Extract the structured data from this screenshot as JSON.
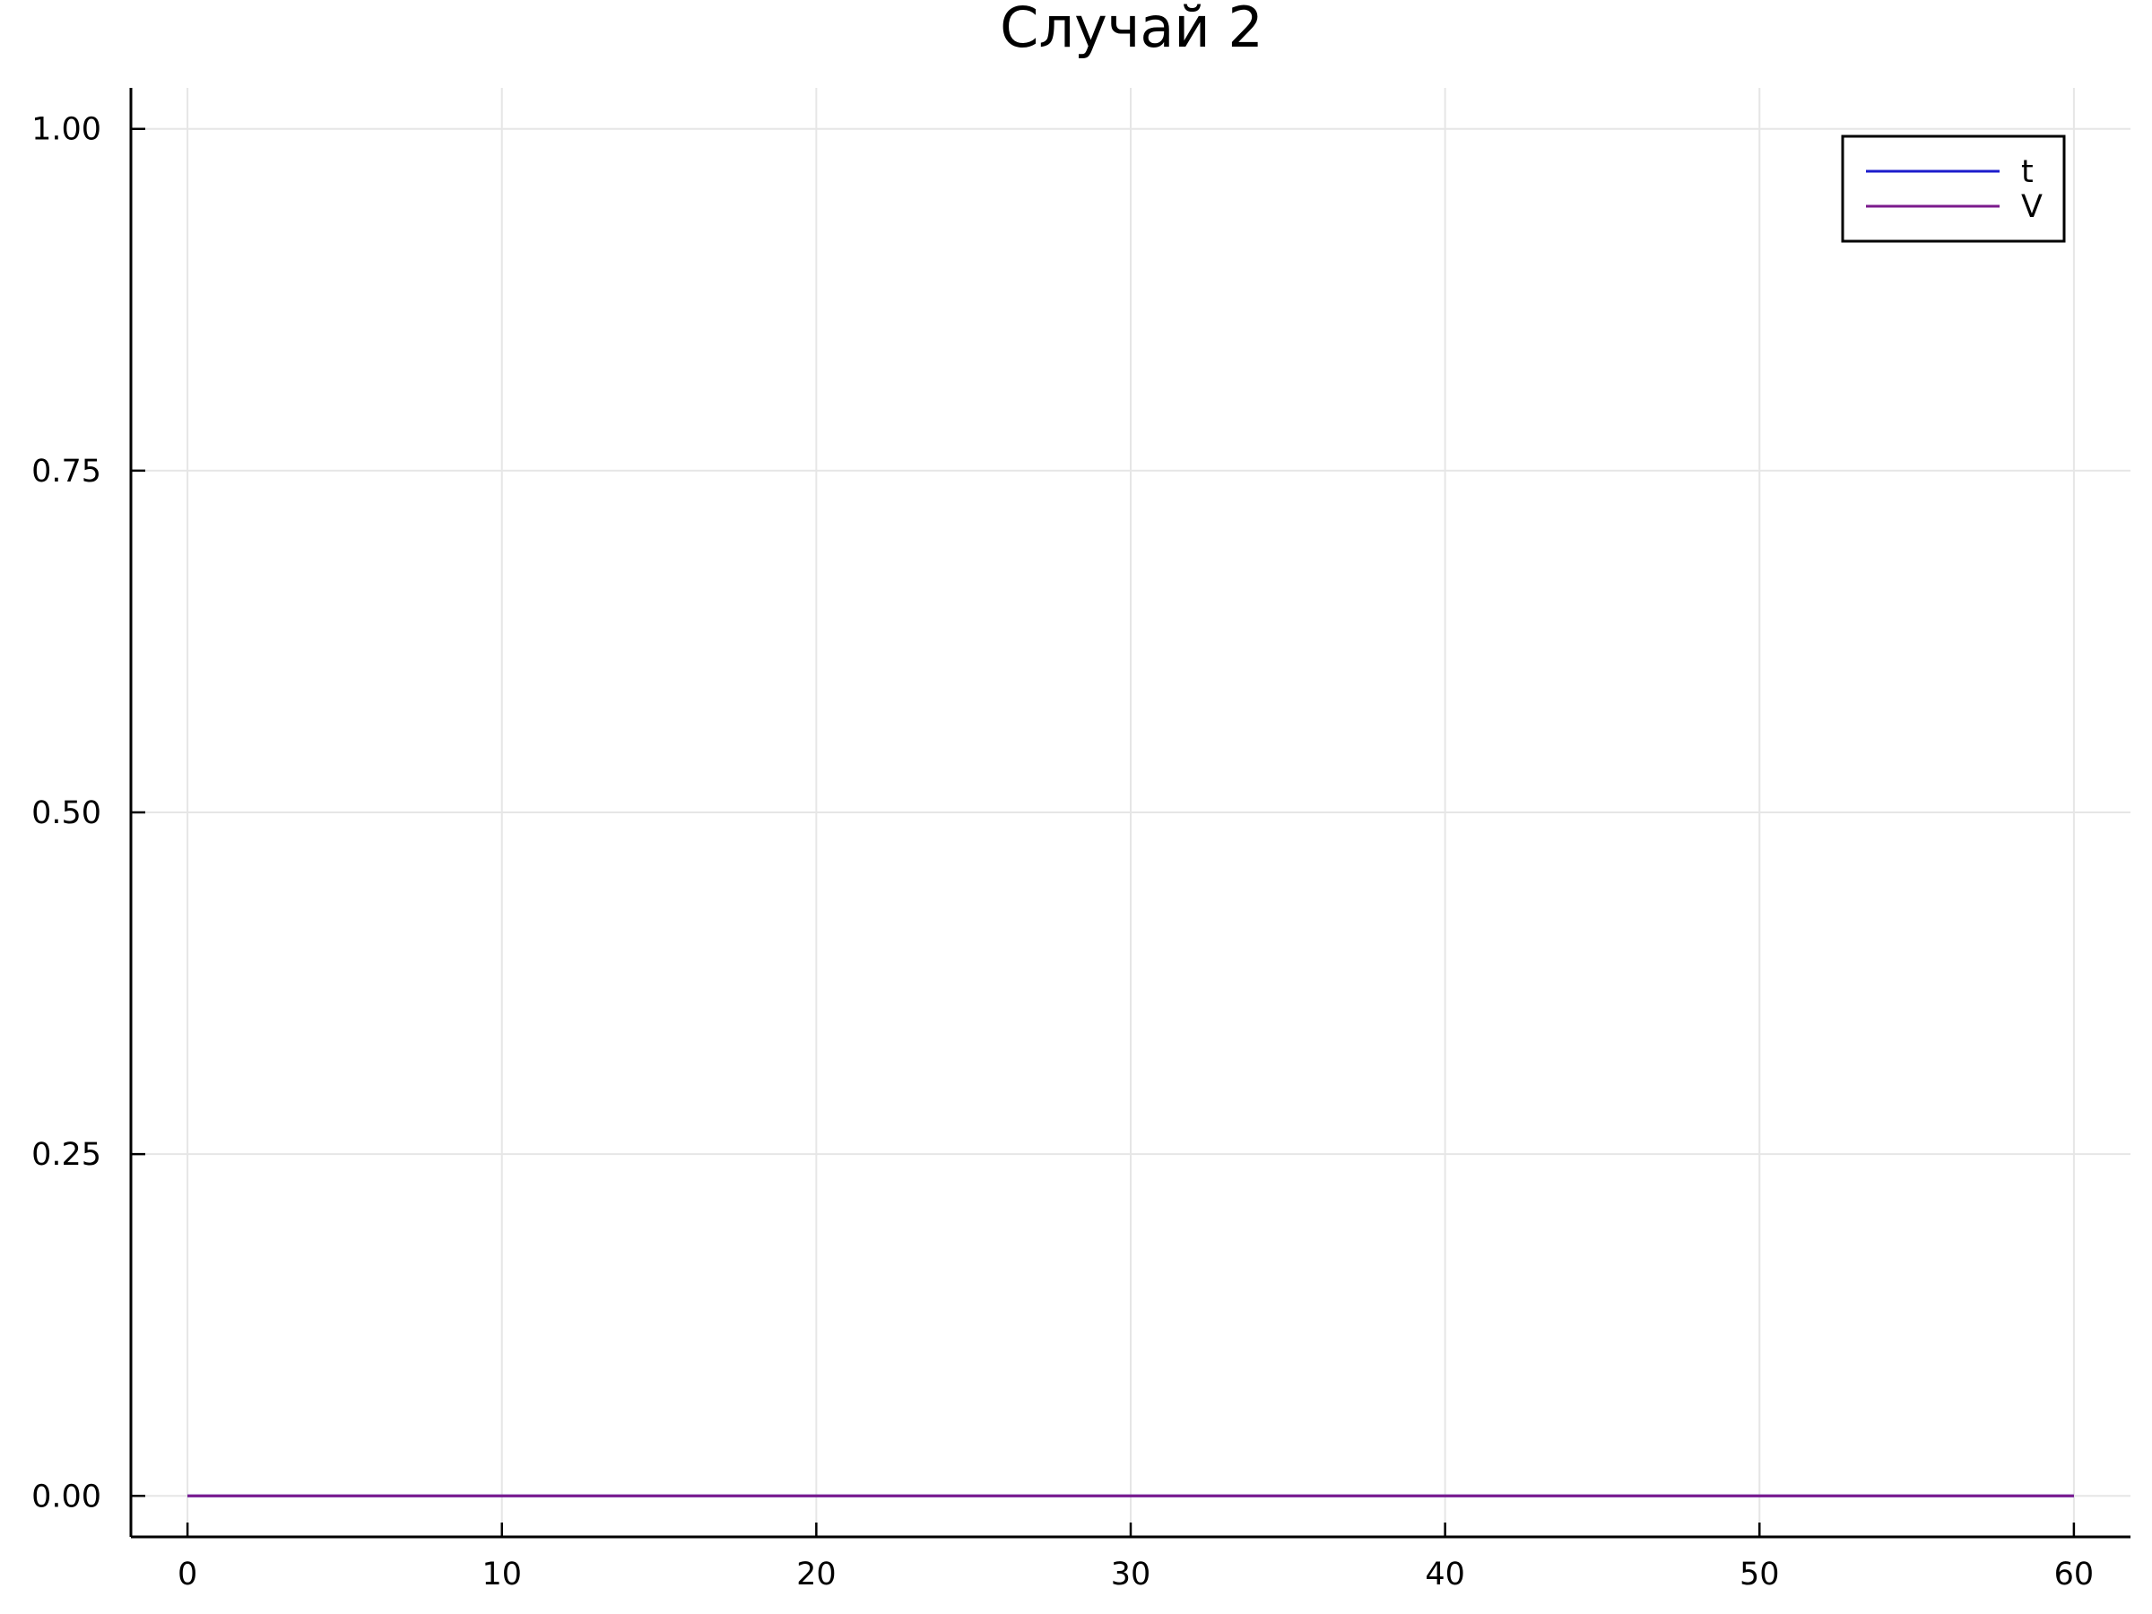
{
  "chart_data": {
    "type": "line",
    "title": "Случай 2",
    "xlabel": "",
    "ylabel": "",
    "xlim": [
      -1.8,
      61.8
    ],
    "ylim": [
      -0.03,
      1.03
    ],
    "x_ticks": [
      0,
      10,
      20,
      30,
      40,
      50,
      60
    ],
    "x_tick_labels": [
      "0",
      "10",
      "20",
      "30",
      "40",
      "50",
      "60"
    ],
    "y_ticks": [
      0,
      0.25,
      0.5,
      0.75,
      1.0
    ],
    "y_tick_labels": [
      "0.00",
      "0.25",
      "0.50",
      "0.75",
      "1.00"
    ],
    "grid": true,
    "legend_position": "top-right",
    "series": [
      {
        "name": "t",
        "color": "#1c1ccc",
        "x": [
          0,
          10,
          20,
          30,
          40,
          50,
          60
        ],
        "values": [
          0,
          0,
          0,
          0,
          0,
          0,
          0
        ]
      },
      {
        "name": "V",
        "color": "#7b1a8c",
        "x": [
          0,
          10,
          20,
          30,
          40,
          50,
          60
        ],
        "values": [
          0,
          0,
          0,
          0,
          0,
          0,
          0
        ]
      }
    ]
  }
}
